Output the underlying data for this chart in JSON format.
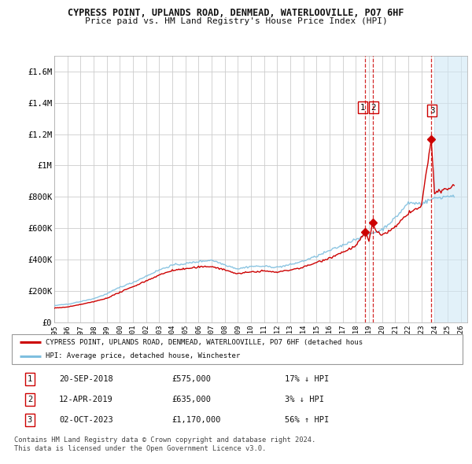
{
  "title": "CYPRESS POINT, UPLANDS ROAD, DENMEAD, WATERLOOVILLE, PO7 6HF",
  "subtitle": "Price paid vs. HM Land Registry's House Price Index (HPI)",
  "ylim": [
    0,
    1700000
  ],
  "yticks": [
    0,
    200000,
    400000,
    600000,
    800000,
    1000000,
    1200000,
    1400000,
    1600000
  ],
  "ytick_labels": [
    "£0",
    "£200K",
    "£400K",
    "£600K",
    "£800K",
    "£1M",
    "£1.2M",
    "£1.4M",
    "£1.6M"
  ],
  "xlim_start": 1995.0,
  "xlim_end": 2026.5,
  "hpi_color": "#7fbfdf",
  "price_color": "#cc0000",
  "dashed_color": "#cc0000",
  "grid_color": "#cccccc",
  "background_color": "#ffffff",
  "transactions": [
    {
      "date": "20-SEP-2018",
      "price": 575000,
      "year": 2018.72,
      "label": "1",
      "hpi_pct": "17% ↓ HPI"
    },
    {
      "date": "12-APR-2019",
      "price": 635000,
      "year": 2019.28,
      "label": "2",
      "hpi_pct": "3% ↓ HPI"
    },
    {
      "date": "02-OCT-2023",
      "price": 1170000,
      "year": 2023.75,
      "label": "3",
      "hpi_pct": "56% ↑ HPI"
    }
  ],
  "legend_property": "CYPRESS POINT, UPLANDS ROAD, DENMEAD, WATERLOOVILLE, PO7 6HF (detached hous",
  "legend_hpi": "HPI: Average price, detached house, Winchester",
  "footnote1": "Contains HM Land Registry data © Crown copyright and database right 2024.",
  "footnote2": "This data is licensed under the Open Government Licence v3.0.",
  "shade_start": 2024.0,
  "shade_end": 2026.5,
  "shade_color": "#d0e8f5"
}
